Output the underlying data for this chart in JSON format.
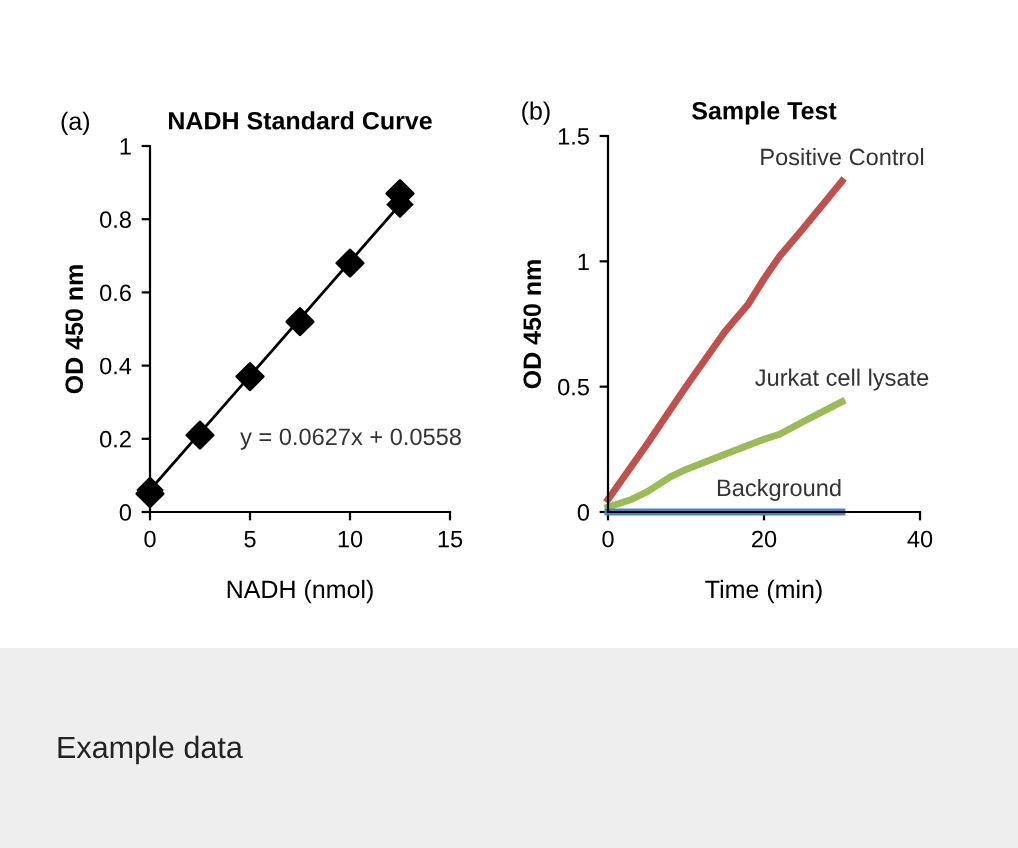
{
  "chart_data": [
    {
      "type": "scatter",
      "title": "NADH Standard Curve",
      "xlabel": "NADH (nmol)",
      "ylabel": "OD 450 nm",
      "xlim": [
        0,
        15
      ],
      "ylim": [
        0,
        1
      ],
      "xticks": [
        0,
        5,
        10,
        15
      ],
      "yticks": [
        0,
        0.2,
        0.4,
        0.6,
        0.8,
        1
      ],
      "marker": "diamond",
      "grid": false,
      "legend": false,
      "annotations": [
        "(a)",
        "y = 0.0627x + 0.0558"
      ],
      "series": [
        {
          "color": "#000000",
          "x": [
            0,
            2.5,
            5,
            7.5,
            10,
            12.5
          ],
          "values": [
            0.05,
            0.21,
            0.37,
            0.52,
            0.68,
            0.87
          ]
        },
        {
          "type": "line",
          "color": "#000000",
          "x": [
            0,
            12.5
          ],
          "values": [
            0.06,
            0.84
          ]
        }
      ]
    },
    {
      "type": "line",
      "title": "Sample Test",
      "xlabel": "Time (min)",
      "ylabel": "OD 450 nm",
      "xlim": [
        0,
        40
      ],
      "ylim": [
        0,
        1.5
      ],
      "xticks": [
        0,
        20,
        40
      ],
      "yticks": [
        0,
        0.5,
        1,
        1.5
      ],
      "marker": "none",
      "grid": false,
      "legend": false,
      "annotations": [
        "(b)",
        "Example data"
      ],
      "series": [
        {
          "name": "Positive Control",
          "color": "#c0504d",
          "x": [
            0,
            5,
            10,
            15,
            18,
            20,
            22,
            25,
            30
          ],
          "values": [
            0.05,
            0.27,
            0.5,
            0.72,
            0.83,
            0.93,
            1.02,
            1.13,
            1.32
          ]
        },
        {
          "name": "Jurkat cell lysate",
          "color": "#9bbb59",
          "x": [
            0,
            3,
            5,
            8,
            10,
            15,
            20,
            22,
            25,
            30
          ],
          "values": [
            0.02,
            0.05,
            0.08,
            0.14,
            0.17,
            0.23,
            0.29,
            0.31,
            0.36,
            0.44
          ]
        },
        {
          "name": "Background",
          "color": "#4f81bd",
          "x": [
            0,
            30
          ],
          "values": [
            0,
            0
          ]
        }
      ]
    }
  ]
}
